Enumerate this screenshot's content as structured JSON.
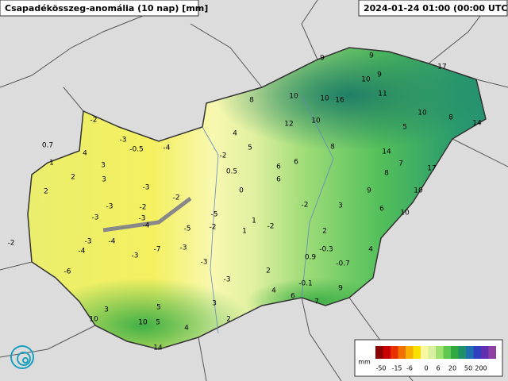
{
  "header": {
    "title": "Csapadékösszeg-anomália (10 nap) [mm]",
    "timestamp": "2024-01-24 01:00 (00:00 UTC)"
  },
  "stations": [
    -2,
    -3,
    0.7,
    4,
    -0.5,
    -4,
    -2,
    1,
    2,
    3,
    0.5,
    2,
    3,
    -3,
    -2,
    -3,
    -3,
    -2,
    -3,
    -5,
    -4,
    -5,
    -2,
    -2,
    -3,
    -4,
    -4,
    -7,
    -3,
    -3,
    -3,
    -6,
    -3,
    3,
    3,
    5,
    10,
    10,
    5,
    2,
    4,
    14,
    9,
    9,
    17,
    10,
    9,
    8,
    10,
    10,
    16,
    11,
    10,
    8,
    14,
    12,
    10,
    5,
    4,
    5,
    8,
    14,
    7,
    17,
    6,
    6,
    8,
    6,
    0,
    9,
    10,
    -2,
    3,
    6,
    10,
    1,
    1,
    -2,
    2,
    4,
    -0.3,
    0.9,
    -0.7,
    2,
    4,
    -0.1,
    6,
    9,
    7
  ],
  "legend": {
    "unit": "mm",
    "ticks": [
      -50,
      -15,
      -6,
      0,
      6,
      20,
      50,
      200
    ],
    "colors": [
      "#8b0000",
      "#c80000",
      "#e83000",
      "#f07000",
      "#f8b000",
      "#f8e000",
      "#f8f8a0",
      "#d8f0a0",
      "#a0e070",
      "#60c850",
      "#30a840",
      "#20906a",
      "#2070b0",
      "#3040c0",
      "#6030b0",
      "#9040a0"
    ]
  }
}
